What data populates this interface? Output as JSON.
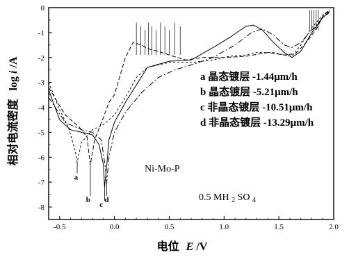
{
  "chart_data": {
    "type": "line",
    "xlabel_prefix": "电位",
    "xlabel_symbol": "E",
    "xlabel_unit": "/V",
    "ylabel_prefix": "相对电流密度",
    "ylabel_log": "log",
    "ylabel_symbol": "i",
    "ylabel_unit": "/A",
    "xlim": [
      -0.6,
      2.0
    ],
    "ylim": [
      -8.5,
      0
    ],
    "x_ticks": [
      -0.5,
      0.0,
      0.5,
      1.0,
      1.5,
      2.0
    ],
    "x_tick_labels": [
      "-0.5",
      "0.0",
      "0.5",
      "1.0",
      "1.5",
      "2.0"
    ],
    "y_ticks": [
      0,
      -1,
      -2,
      -3,
      -4,
      -5,
      -6,
      -7,
      -8
    ],
    "y_tick_labels": [
      "0",
      "-1",
      "-2",
      "-3",
      "-4",
      "-5",
      "-6",
      "-7",
      "-8"
    ],
    "grid": false,
    "legend_position": "right-middle",
    "annotations": {
      "sample": "Ni-Mo-P",
      "solution_prefix": "0.5 MH",
      "solution_sub1": "2",
      "solution_mid": "SO",
      "solution_sub2": "4"
    },
    "series": [
      {
        "tag": "a",
        "legend": "a 晶态镀层 -1.44μm/h",
        "dash": "3,3",
        "points": [
          [
            -0.6,
            -3.0
          ],
          [
            -0.5,
            -4.1
          ],
          [
            -0.42,
            -4.8
          ],
          [
            -0.36,
            -5.7
          ],
          [
            -0.34,
            -6.2
          ],
          [
            -0.3,
            -5.4
          ],
          [
            -0.2,
            -4.9
          ],
          [
            -0.1,
            -4.7
          ],
          [
            0.0,
            -4.3
          ],
          [
            0.1,
            -3.6
          ],
          [
            0.2,
            -2.8
          ],
          [
            0.3,
            -2.4
          ],
          [
            0.5,
            -2.2
          ],
          [
            0.7,
            -2.2
          ],
          [
            0.9,
            -2.1
          ],
          [
            1.05,
            -1.95
          ],
          [
            1.2,
            -1.9
          ],
          [
            1.3,
            -1.8
          ],
          [
            1.45,
            -1.8
          ],
          [
            1.55,
            -1.9
          ],
          [
            1.62,
            -1.95
          ],
          [
            1.7,
            -1.5
          ],
          [
            1.8,
            -0.8
          ],
          [
            1.9,
            -0.3
          ],
          [
            1.96,
            -0.1
          ]
        ]
      },
      {
        "tag": "b",
        "legend": "b 晶态镀层 -5.21μm/h",
        "dash": "6,3",
        "points": [
          [
            -0.6,
            -3.2
          ],
          [
            -0.45,
            -4.3
          ],
          [
            -0.32,
            -4.8
          ],
          [
            -0.25,
            -5.2
          ],
          [
            -0.22,
            -6.3
          ],
          [
            -0.18,
            -5.3
          ],
          [
            -0.1,
            -4.4
          ],
          [
            -0.05,
            -3.8
          ],
          [
            0.0,
            -3.5
          ],
          [
            0.1,
            -2.0
          ],
          [
            0.17,
            -1.4
          ],
          [
            0.25,
            -1.5
          ],
          [
            0.3,
            -1.65
          ],
          [
            0.4,
            -1.75
          ],
          [
            0.5,
            -1.9
          ],
          [
            0.65,
            -2.1
          ],
          [
            0.8,
            -2.0
          ],
          [
            1.0,
            -2.0
          ],
          [
            1.2,
            -1.95
          ],
          [
            1.4,
            -1.8
          ],
          [
            1.55,
            -1.9
          ],
          [
            1.65,
            -1.85
          ],
          [
            1.75,
            -1.4
          ],
          [
            1.85,
            -0.8
          ],
          [
            1.9,
            -0.35
          ],
          [
            1.96,
            -0.1
          ]
        ]
      },
      {
        "tag": "c",
        "legend": "c 非晶态镀层 -10.51μm/h",
        "dash": "none",
        "points": [
          [
            -0.6,
            -3.3
          ],
          [
            -0.5,
            -4.5
          ],
          [
            -0.4,
            -4.9
          ],
          [
            -0.3,
            -5.0
          ],
          [
            -0.2,
            -5.1
          ],
          [
            -0.14,
            -5.5
          ],
          [
            -0.1,
            -6.3
          ],
          [
            -0.09,
            -7.2
          ],
          [
            -0.07,
            -6.3
          ],
          [
            -0.05,
            -5.3
          ],
          [
            0.0,
            -4.6
          ],
          [
            0.1,
            -3.8
          ],
          [
            0.3,
            -2.4
          ],
          [
            0.5,
            -2.15
          ],
          [
            0.7,
            -2.1
          ],
          [
            0.9,
            -1.6
          ],
          [
            1.05,
            -1.2
          ],
          [
            1.2,
            -0.75
          ],
          [
            1.27,
            -0.7
          ],
          [
            1.35,
            -0.9
          ],
          [
            1.45,
            -1.4
          ],
          [
            1.55,
            -1.8
          ],
          [
            1.62,
            -2.0
          ],
          [
            1.7,
            -1.75
          ],
          [
            1.8,
            -1.0
          ],
          [
            1.9,
            -0.4
          ],
          [
            1.96,
            -0.15
          ]
        ]
      },
      {
        "tag": "d",
        "legend": "d 非晶态镀层 -13.29μm/h",
        "dash": "8,3,2,3",
        "points": [
          [
            -0.6,
            -3.6
          ],
          [
            -0.45,
            -4.6
          ],
          [
            -0.3,
            -4.9
          ],
          [
            -0.2,
            -5.0
          ],
          [
            -0.12,
            -5.3
          ],
          [
            -0.08,
            -6.5
          ],
          [
            -0.07,
            -7.0
          ],
          [
            -0.05,
            -6.0
          ],
          [
            0.0,
            -5.0
          ],
          [
            0.1,
            -4.2
          ],
          [
            0.25,
            -3.4
          ],
          [
            0.4,
            -2.8
          ],
          [
            0.55,
            -2.5
          ],
          [
            0.7,
            -2.3
          ],
          [
            0.9,
            -2.0
          ],
          [
            1.1,
            -1.5
          ],
          [
            1.25,
            -1.0
          ],
          [
            1.35,
            -0.85
          ],
          [
            1.45,
            -1.1
          ],
          [
            1.55,
            -1.5
          ],
          [
            1.62,
            -1.6
          ],
          [
            1.7,
            -1.4
          ],
          [
            1.8,
            -0.9
          ],
          [
            1.9,
            -0.4
          ],
          [
            1.96,
            -0.2
          ]
        ]
      }
    ]
  }
}
